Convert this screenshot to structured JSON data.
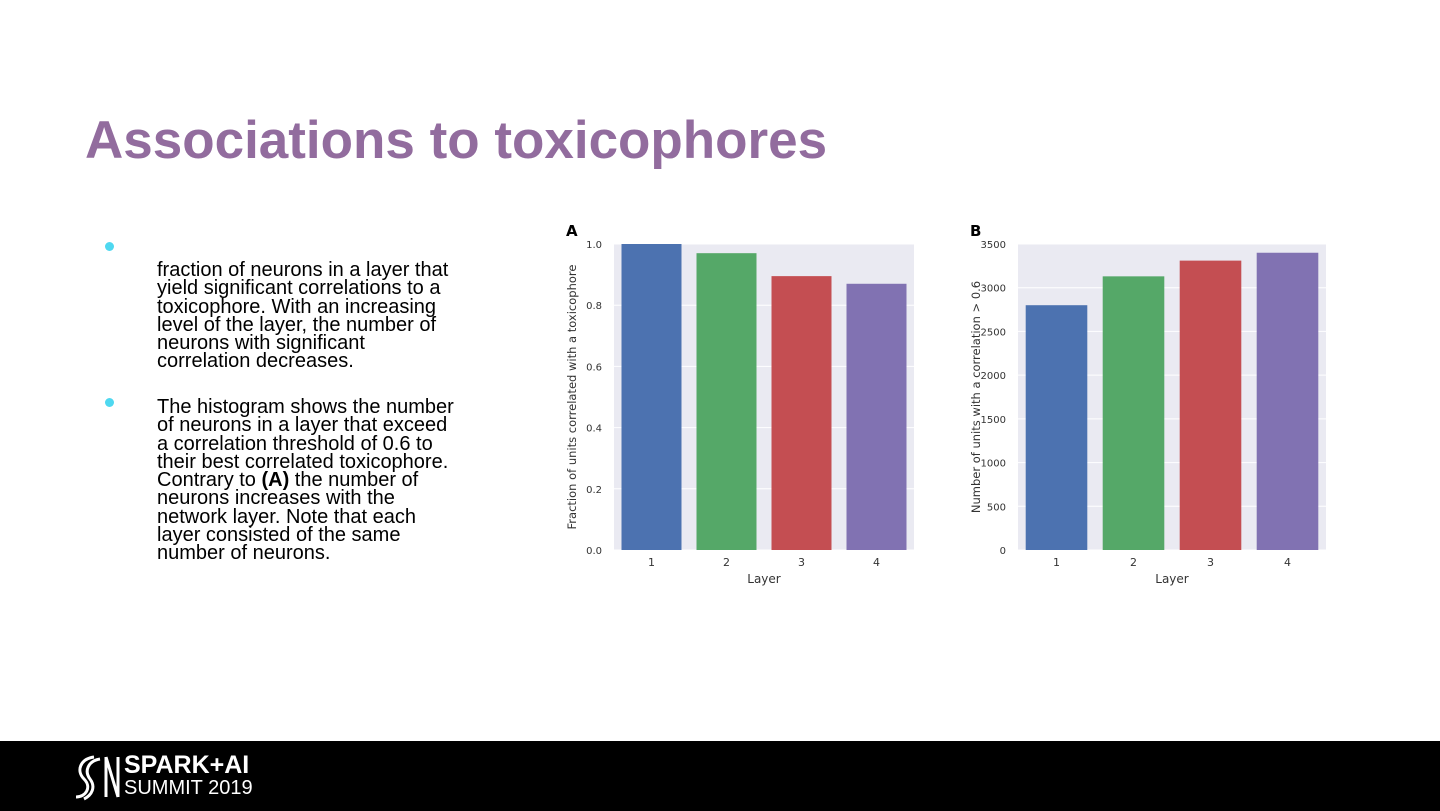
{
  "title": "Associations to toxicophores",
  "bullets": [
    {
      "parts": [
        "fraction of neurons in a layer that yield significant correlations to a toxicophore. With an increasing level of the layer, the number of neurons with significant correlation decreases."
      ]
    },
    {
      "parts": [
        "The histogram shows the number of neurons in a layer that exceed a correlation threshold of 0.6 to their best correlated toxicophore. Contrary to ",
        "(A)",
        " the number of neurons increases with the network layer. Note that each layer consisted of the same number of neurons."
      ]
    }
  ],
  "footer": {
    "brand": "SPARK+AI",
    "event": "SUMMIT 2019"
  },
  "chart_data": [
    {
      "type": "bar",
      "panel": "A",
      "xlabel": "Layer",
      "ylabel": "Fraction of units correlated with a toxicophore",
      "categories": [
        "1",
        "2",
        "3",
        "4"
      ],
      "values": [
        1.0,
        0.97,
        0.895,
        0.87
      ],
      "colors": [
        "#4c72b0",
        "#55a868",
        "#c44e52",
        "#8172b2"
      ],
      "ylim": [
        0,
        1.0
      ],
      "yticks": [
        {
          "value": 0,
          "label": "0.0"
        },
        0.2,
        0.4,
        0.6,
        0.8,
        {
          "value": 1.0,
          "label": "1.0"
        }
      ],
      "grid": true
    },
    {
      "type": "bar",
      "panel": "B",
      "xlabel": "Layer",
      "ylabel": "Number of units with a correlation > 0.6",
      "categories": [
        "1",
        "2",
        "3",
        "4"
      ],
      "values": [
        2800,
        3130,
        3310,
        3400
      ],
      "colors": [
        "#4c72b0",
        "#55a868",
        "#c44e52",
        "#8172b2"
      ],
      "ylim": [
        0,
        3500
      ],
      "yticks": [
        0,
        500,
        1000,
        1500,
        2000,
        2500,
        3000,
        3500
      ],
      "grid": true
    }
  ]
}
